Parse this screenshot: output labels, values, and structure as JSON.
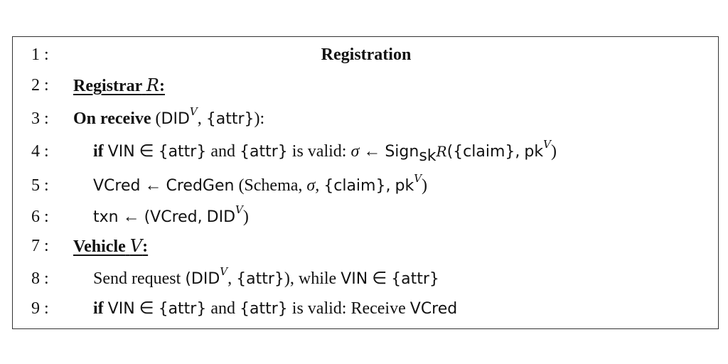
{
  "algorithm": {
    "title": "Registration",
    "lines": [
      {
        "num": "1 :"
      },
      {
        "num": "2 :",
        "registrar_label": "Registrar",
        "registrar_symbol": "R",
        "colon": ":"
      },
      {
        "num": "3 :",
        "keyword": "On receive",
        "open": "(",
        "did": "DID",
        "sup_v": "V",
        "comma": ",",
        "attr_set": "{attr}",
        "close": "):"
      },
      {
        "num": "4 :",
        "if_kw": "if",
        "vin": "VIN",
        "in_sym": "∈",
        "attr_set1": "{attr}",
        "and_kw": "and",
        "attr_set2": "{attr}",
        "is_valid": "is valid:",
        "sigma": "σ",
        "arrow": "←",
        "sign": "Sign",
        "sub_sk": "sk",
        "sub_r": "R",
        "args_open": "({claim},",
        "pk": "pk",
        "sup_v": "V",
        "args_close": ")"
      },
      {
        "num": "5 :",
        "vcred": "VCred",
        "arrow": "←",
        "credgen": "CredGen",
        "args_open": "(Schema,",
        "sigma": "σ,",
        "claim_set": "{claim},",
        "pk": "pk",
        "sup_v": "V",
        "args_close": ")"
      },
      {
        "num": "6 :",
        "txn": "txn",
        "arrow": "←",
        "open": "(VCred,",
        "did": "DID",
        "sup_v": "V",
        "close": ")"
      },
      {
        "num": "7 :",
        "vehicle_label": "Vehicle",
        "vehicle_symbol": "V",
        "colon": ":"
      },
      {
        "num": "8 :",
        "send_request": "Send request",
        "open": "(DID",
        "sup_v": "V",
        "comma": ",",
        "attr_set": "{attr}",
        "close_while": "), while",
        "vin": "VIN",
        "in_sym": "∈",
        "attr_set2": "{attr}"
      },
      {
        "num": "9 :",
        "if_kw": "if",
        "vin": "VIN",
        "in_sym": "∈",
        "attr_set1": "{attr}",
        "and_kw": "and",
        "attr_set2": "{attr}",
        "is_valid": "is valid:",
        "receive": "Receive",
        "vcred": "VCred"
      }
    ]
  },
  "colors": {
    "border": "#333333",
    "text": "#111111",
    "background": "#ffffff"
  }
}
